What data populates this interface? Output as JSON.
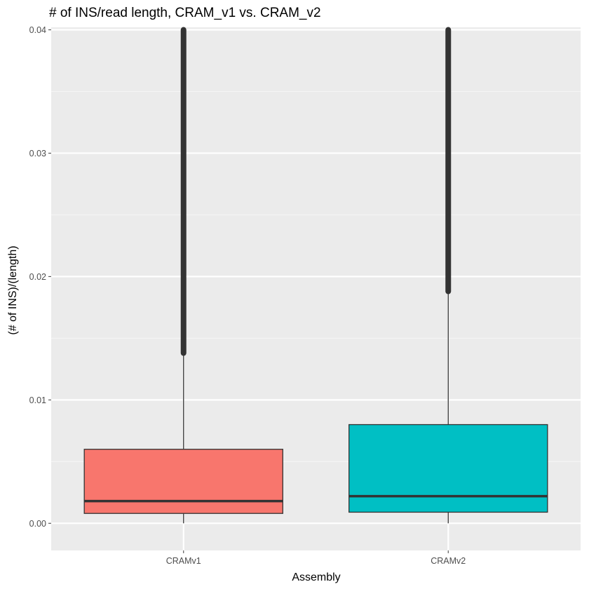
{
  "chart_data": {
    "type": "boxplot",
    "title": "# of INS/read length, CRAM_v1 vs. CRAM_v2",
    "xlabel": "Assembly",
    "ylabel": "(# of INS)/(length)",
    "ylim": [
      -0.0022,
      0.0402
    ],
    "y_ticks": [
      0.0,
      0.01,
      0.02,
      0.03,
      0.04
    ],
    "y_tick_labels": [
      "0.00",
      "0.01",
      "0.02",
      "0.03",
      "0.04"
    ],
    "y_minor_ticks": [
      0.005,
      0.015,
      0.025,
      0.035
    ],
    "categories": [
      "CRAMv1",
      "CRAMv2"
    ],
    "boxes": [
      {
        "category": "CRAMv1",
        "whisker_low": 0.0,
        "q1": 0.0008,
        "median": 0.0018,
        "q3": 0.006,
        "whisker_high": 0.0138,
        "outliers_from": 0.0138,
        "outliers_to": 0.04,
        "fill": "#F8766D"
      },
      {
        "category": "CRAMv2",
        "whisker_low": 0.0,
        "q1": 0.0009,
        "median": 0.0022,
        "q3": 0.008,
        "whisker_high": 0.0188,
        "outliers_from": 0.0188,
        "outliers_to": 0.04,
        "fill": "#00BFC4"
      }
    ],
    "grid": true,
    "legend": "none",
    "colors": {
      "panel": "#EBEBEB",
      "grid_major": "#FFFFFF",
      "grid_minor": "#F5F5F5",
      "outline": "#333333",
      "tick": "#4d4d4d"
    }
  }
}
